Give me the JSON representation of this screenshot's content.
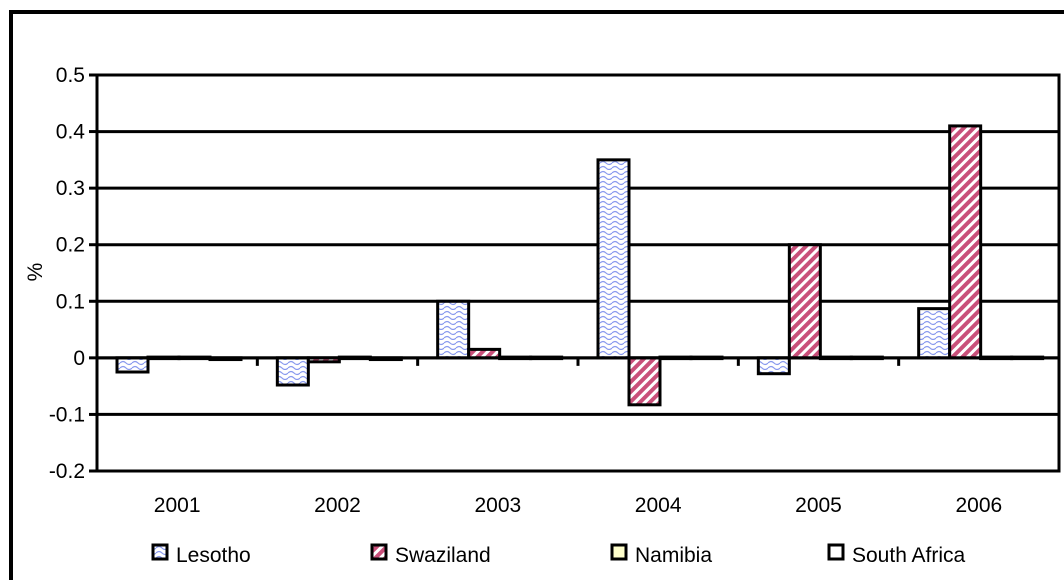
{
  "chart_data": {
    "type": "bar",
    "title": "",
    "xlabel": "",
    "ylabel": "%",
    "ylim": [
      -0.2,
      0.5
    ],
    "yticks": [
      0.5,
      0.4,
      0.3,
      0.2,
      0.1,
      0,
      -0.1,
      -0.2
    ],
    "ytick_labels": [
      "0.5",
      "0.4",
      "0.3",
      "0.2",
      "0.1",
      "0",
      "-0.1",
      "-0.2"
    ],
    "grid": true,
    "legend_position": "bottom",
    "categories": [
      "2001",
      "2002",
      "2003",
      "2004",
      "2005",
      "2006"
    ],
    "series": [
      {
        "name": "Lesotho",
        "values": [
          -0.025,
          -0.048,
          0.1,
          0.35,
          -0.028,
          0.087
        ],
        "color": "#dfe6ff",
        "pattern": "wave-blue"
      },
      {
        "name": "Swaziland",
        "values": [
          0,
          -0.007,
          0.015,
          -0.083,
          0.2,
          0.41
        ],
        "color": "#c9507a",
        "pattern": "diagonal-pink"
      },
      {
        "name": "Namibia",
        "values": [
          0,
          0,
          0,
          0,
          0,
          0
        ],
        "color": "#ffffcc",
        "pattern": "solid"
      },
      {
        "name": "South Africa",
        "values": [
          -0.003,
          -0.003,
          0,
          0.001,
          0,
          0
        ],
        "color": "#ffffff",
        "pattern": "solid"
      }
    ]
  }
}
